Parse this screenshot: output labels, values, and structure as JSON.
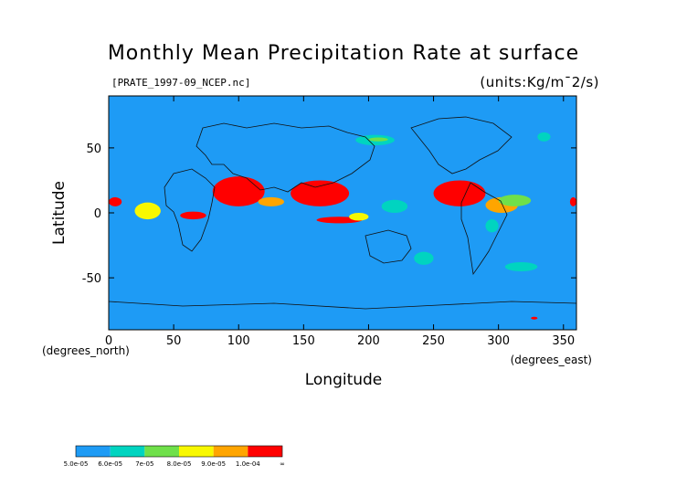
{
  "header": {
    "title": "Monthly Mean Precipitation Rate at surface",
    "file": "[PRATE_1997-09_NCEP.nc]",
    "units": "(units:Kg/m¯2/s)"
  },
  "chart_data": {
    "type": "heatmap",
    "title": "Monthly Mean Precipitation Rate at surface",
    "xlabel": "Longitude",
    "ylabel": "Latitude",
    "x_unit_label": "(degrees_east)",
    "y_unit_label": "(degrees_north)",
    "xlim": [
      0,
      360
    ],
    "ylim": [
      -90,
      90
    ],
    "x_ticks": [
      0,
      50,
      100,
      150,
      200,
      250,
      300,
      350
    ],
    "y_ticks": [
      -50,
      0,
      50
    ],
    "colorbar": {
      "levels": [
        "5.0e-05",
        "6.0e-05",
        "7e-05",
        "8.0e-05",
        "9.0e-05",
        "1.0e-04",
        "∞"
      ],
      "colors": [
        "#1e9bf5",
        "#00d4c0",
        "#6fe04a",
        "#f8f800",
        "#ffa500",
        "#ff0000"
      ]
    },
    "background_color": "#1e9bf5",
    "regions": [
      {
        "level": 5,
        "lon": [
          80,
          120
        ],
        "lat": [
          5,
          28
        ]
      },
      {
        "level": 5,
        "lon": [
          140,
          185
        ],
        "lat": [
          5,
          25
        ]
      },
      {
        "level": 5,
        "lon": [
          250,
          290
        ],
        "lat": [
          5,
          25
        ]
      },
      {
        "level": 5,
        "lon": [
          160,
          195
        ],
        "lat": [
          -8,
          -3
        ]
      },
      {
        "level": 5,
        "lon": [
          55,
          75
        ],
        "lat": [
          -5,
          1
        ]
      },
      {
        "level": 5,
        "lon": [
          355,
          360
        ],
        "lat": [
          5,
          12
        ]
      },
      {
        "level": 5,
        "lon": [
          0,
          10
        ],
        "lat": [
          5,
          12
        ]
      },
      {
        "level": 5,
        "lon": [
          25,
          35
        ],
        "lat": [
          -3,
          5
        ]
      },
      {
        "level": 4,
        "lon": [
          115,
          135
        ],
        "lat": [
          5,
          12
        ]
      },
      {
        "level": 4,
        "lon": [
          290,
          315
        ],
        "lat": [
          0,
          12
        ]
      },
      {
        "level": 3,
        "lon": [
          185,
          200
        ],
        "lat": [
          -6,
          0
        ]
      },
      {
        "level": 3,
        "lon": [
          20,
          40
        ],
        "lat": [
          -5,
          8
        ]
      },
      {
        "level": 2,
        "lon": [
          300,
          325
        ],
        "lat": [
          5,
          14
        ]
      },
      {
        "level": 1,
        "lon": [
          210,
          230
        ],
        "lat": [
          0,
          10
        ]
      },
      {
        "level": 1,
        "lon": [
          235,
          250
        ],
        "lat": [
          -40,
          -30
        ]
      },
      {
        "level": 1,
        "lon": [
          305,
          330
        ],
        "lat": [
          -45,
          -38
        ]
      },
      {
        "level": 1,
        "lon": [
          190,
          220
        ],
        "lat": [
          52,
          60
        ]
      },
      {
        "level": 2,
        "lon": [
          200,
          215
        ],
        "lat": [
          55,
          58
        ]
      },
      {
        "level": 1,
        "lon": [
          330,
          340
        ],
        "lat": [
          55,
          62
        ]
      },
      {
        "level": 1,
        "lon": [
          290,
          300
        ],
        "lat": [
          -15,
          -5
        ]
      },
      {
        "level": 5,
        "lon": [
          325,
          330
        ],
        "lat": [
          -82,
          -80
        ]
      }
    ]
  }
}
